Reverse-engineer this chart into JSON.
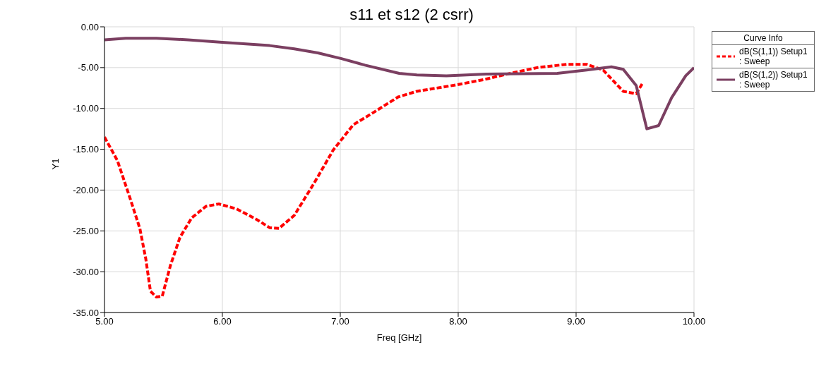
{
  "chart_data": {
    "type": "line",
    "title": "s11 et s12 (2 csrr)",
    "xlabel": "Freq [GHz]",
    "ylabel": "Y1",
    "legend_title": "Curve Info",
    "legend": "top right",
    "grid": true,
    "xlim": [
      5,
      10
    ],
    "xticks": [
      {
        "value": 5,
        "label": "5.00"
      },
      {
        "value": 6,
        "label": "6.00"
      },
      {
        "value": 7,
        "label": "7.00"
      },
      {
        "value": 8,
        "label": "8.00"
      },
      {
        "value": 9,
        "label": "9.00"
      },
      {
        "value": 10,
        "label": "10.00"
      }
    ],
    "ylim": [
      -35,
      0
    ],
    "yticks": [
      {
        "value": 0,
        "label": "0.00"
      },
      {
        "value": -5,
        "label": "-5.00"
      },
      {
        "value": -10,
        "label": "-10.00"
      },
      {
        "value": -15,
        "label": "-15.00"
      },
      {
        "value": -20,
        "label": "-20.00"
      },
      {
        "value": -25,
        "label": "-25.00"
      },
      {
        "value": -30,
        "label": "-30.00"
      },
      {
        "value": -35,
        "label": "-35.00"
      }
    ],
    "series": [
      {
        "name": "dB(S(1,1)) Setup1 : Sweep",
        "color": "#ff0000",
        "line_style": "dashed",
        "x": [
          5.0,
          5.11,
          5.21,
          5.3,
          5.35,
          5.39,
          5.44,
          5.49,
          5.56,
          5.64,
          5.74,
          5.86,
          5.97,
          6.12,
          6.29,
          6.4,
          6.48,
          6.61,
          6.78,
          6.94,
          7.11,
          7.27,
          7.49,
          7.65,
          7.99,
          8.24,
          8.41,
          8.67,
          8.92,
          9.09,
          9.23,
          9.4,
          9.51,
          9.56
        ],
        "values": [
          -13.5,
          -16.4,
          -20.7,
          -24.7,
          -28.4,
          -32.4,
          -33.1,
          -33.0,
          -29.2,
          -25.8,
          -23.4,
          -22.0,
          -21.7,
          -22.3,
          -23.6,
          -24.6,
          -24.7,
          -23.1,
          -19.1,
          -15.1,
          -12.0,
          -10.6,
          -8.6,
          -7.9,
          -7.1,
          -6.4,
          -5.8,
          -5.0,
          -4.6,
          -4.6,
          -5.3,
          -7.9,
          -8.2,
          -7.0
        ]
      },
      {
        "name": "dB(S(1,2)) Setup1 : Sweep",
        "color": "#7b3f61",
        "line_style": "solid",
        "x": [
          5.0,
          5.18,
          5.44,
          5.71,
          6.0,
          6.4,
          6.61,
          6.81,
          7.01,
          7.21,
          7.5,
          7.65,
          7.9,
          8.24,
          8.84,
          9.09,
          9.3,
          9.4,
          9.51,
          9.6,
          9.7,
          9.81,
          9.93,
          10.0
        ],
        "values": [
          -1.6,
          -1.4,
          -1.4,
          -1.6,
          -1.9,
          -2.3,
          -2.7,
          -3.2,
          -3.9,
          -4.7,
          -5.7,
          -5.9,
          -6.0,
          -5.8,
          -5.7,
          -5.3,
          -4.9,
          -5.2,
          -7.2,
          -12.5,
          -12.1,
          -8.7,
          -6.0,
          -5.0
        ]
      }
    ]
  }
}
